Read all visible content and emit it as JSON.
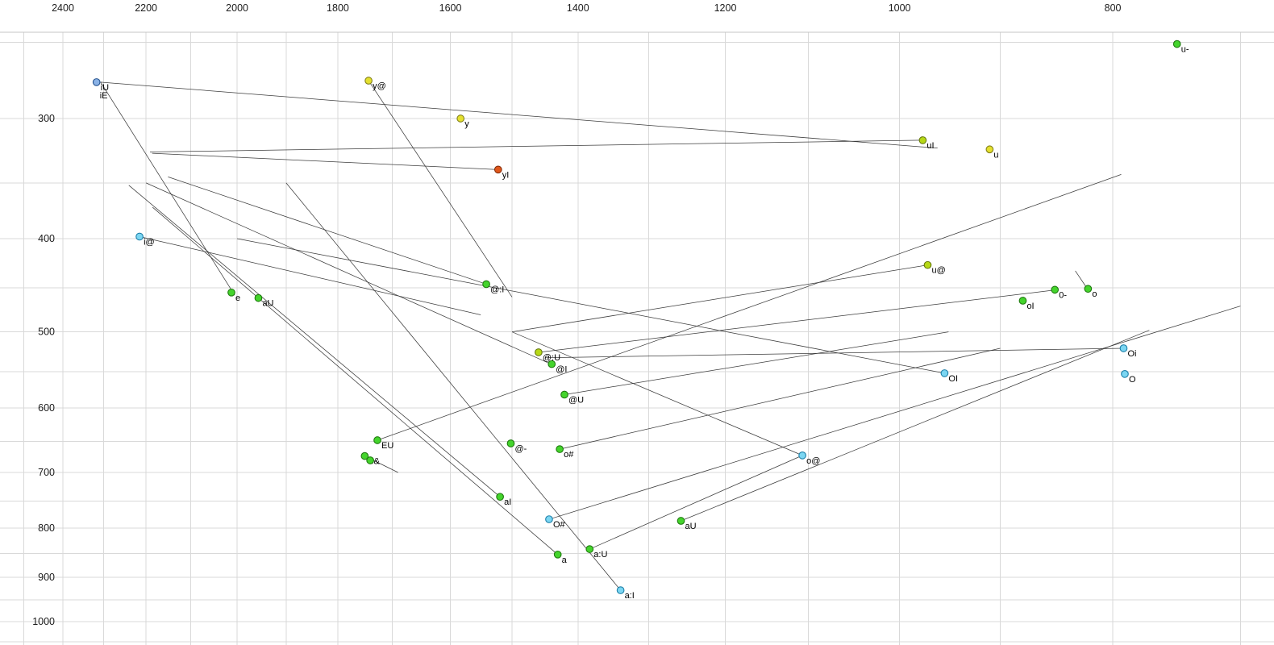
{
  "chart_data": {
    "type": "scatter",
    "title": "",
    "x_axis": {
      "unit": "Hz",
      "scale": "log",
      "reversed": true,
      "tick_labels": [
        "2400",
        "2200",
        "2000",
        "1800",
        "1600",
        "1400",
        "1200",
        "1000",
        "800"
      ],
      "tick_values": [
        2400,
        2200,
        2000,
        1800,
        1600,
        1400,
        1200,
        1000,
        800
      ],
      "grid_min": 700,
      "grid_max": 2500,
      "grid_step": 100
    },
    "y_axis": {
      "unit": "Hz",
      "scale": "log",
      "direction": "down",
      "tick_labels": [
        "300",
        "400",
        "500",
        "600",
        "700",
        "800",
        "900",
        "1000"
      ],
      "tick_values": [
        300,
        400,
        500,
        600,
        700,
        800,
        900,
        1000
      ],
      "grid_min": 250,
      "grid_max": 1050,
      "grid_step": 50
    },
    "grid_color": "#d9d9d9",
    "line_color": "#3c3c3c",
    "palette": {
      "green": {
        "fill": "#44d42c",
        "stroke": "#1f7a0f"
      },
      "yellow": {
        "fill": "#e4e02e",
        "stroke": "#83801a"
      },
      "yellowgreen": {
        "fill": "#b6d816",
        "stroke": "#66790d"
      },
      "cyan": {
        "fill": "#7bd6f2",
        "stroke": "#1d7fa8"
      },
      "blue": {
        "fill": "#8ab2e6",
        "stroke": "#23508c"
      },
      "red": {
        "fill": "#e0571c",
        "stroke": "#832c08"
      }
    },
    "points": [
      {
        "label": "u-",
        "f2": 748,
        "f1": 251,
        "color": "green"
      },
      {
        "label": "iU",
        "f2": 2317,
        "f1": 275,
        "color": "blue"
      },
      {
        "label": "y@",
        "f2": 1743,
        "f1": 274,
        "color": "yellow"
      },
      {
        "label": "y",
        "f2": 1583,
        "f1": 300,
        "color": "yellow"
      },
      {
        "label": "uI",
        "f2": 976,
        "f1": 316,
        "color": "yellowgreen"
      },
      {
        "label": "u",
        "f2": 910,
        "f1": 323,
        "color": "yellow"
      },
      {
        "label": "yI",
        "f2": 1522,
        "f1": 339,
        "color": "red"
      },
      {
        "label": "i@",
        "f2": 2215,
        "f1": 398,
        "color": "cyan"
      },
      {
        "label": "u@",
        "f2": 971,
        "f1": 426,
        "color": "yellowgreen"
      },
      {
        "label": "0-",
        "f2": 850,
        "f1": 452,
        "color": "green"
      },
      {
        "label": "o",
        "f2": 821,
        "f1": 451,
        "color": "green"
      },
      {
        "label": "oI",
        "f2": 879,
        "f1": 464,
        "color": "green"
      },
      {
        "label": "e",
        "f2": 2012,
        "f1": 455,
        "color": "green"
      },
      {
        "label": "aU",
        "f2": 1956,
        "f1": 461,
        "color": "green"
      },
      {
        "label": "@:I",
        "f2": 1541,
        "f1": 446,
        "color": "green"
      },
      {
        "label": "@:U",
        "f2": 1459,
        "f1": 525,
        "color": "yellowgreen"
      },
      {
        "label": "@I",
        "f2": 1439,
        "f1": 540,
        "color": "green"
      },
      {
        "label": "@U",
        "f2": 1420,
        "f1": 581,
        "color": "green"
      },
      {
        "label": "OI",
        "f2": 954,
        "f1": 552,
        "color": "cyan"
      },
      {
        "label": "Oi",
        "f2": 791,
        "f1": 520,
        "color": "cyan"
      },
      {
        "label": "O",
        "f2": 790,
        "f1": 553,
        "color": "cyan"
      },
      {
        "label": "EU",
        "f2": 1727,
        "f1": 648,
        "color": "green"
      },
      {
        "label": "e&",
        "f2": 1750,
        "f1": 673,
        "color": "green"
      },
      {
        "label": "",
        "f2": 1740,
        "f1": 680,
        "color": "green"
      },
      {
        "label": "@-",
        "f2": 1502,
        "f1": 653,
        "color": "green"
      },
      {
        "label": "o#",
        "f2": 1427,
        "f1": 662,
        "color": "green"
      },
      {
        "label": "o@",
        "f2": 1107,
        "f1": 672,
        "color": "cyan"
      },
      {
        "label": "aI",
        "f2": 1519,
        "f1": 742,
        "color": "green"
      },
      {
        "label": "O#",
        "f2": 1443,
        "f1": 783,
        "color": "cyan"
      },
      {
        "label": "aU",
        "f2": 1257,
        "f1": 786,
        "color": "green"
      },
      {
        "label": "a",
        "f2": 1430,
        "f1": 852,
        "color": "green"
      },
      {
        "label": "a:U",
        "f2": 1383,
        "f1": 841,
        "color": "green"
      },
      {
        "label": "a:I",
        "f2": 1339,
        "f1": 928,
        "color": "cyan"
      }
    ],
    "extra_labels": [
      {
        "text": "iE",
        "f2": 2317,
        "f1": 275
      }
    ],
    "segments": [
      [
        2307,
        275,
        961,
        322
      ],
      [
        2307,
        275,
        2005,
        458
      ],
      [
        2215,
        398,
        1550,
        480
      ],
      [
        1743,
        274,
        1500,
        460
      ],
      [
        1522,
        339,
        2186,
        326
      ],
      [
        976,
        316,
        2191,
        325
      ],
      [
        971,
        426,
        1500,
        500
      ],
      [
        1541,
        446,
        2150,
        345
      ],
      [
        1459,
        525,
        848,
        452
      ],
      [
        1443,
        539,
        2200,
        350
      ],
      [
        1420,
        581,
        950,
        500
      ],
      [
        954,
        552,
        2000,
        400
      ],
      [
        791,
        520,
        1449,
        532
      ],
      [
        1727,
        648,
        793,
        343
      ],
      [
        1750,
        673,
        1690,
        700
      ],
      [
        1427,
        662,
        900,
        520
      ],
      [
        1107,
        672,
        1500,
        500
      ],
      [
        1519,
        742,
        2240,
        352
      ],
      [
        1339,
        928,
        1900,
        350
      ],
      [
        1257,
        786,
        770,
        498
      ],
      [
        1383,
        841,
        1107,
        672
      ],
      [
        1430,
        852,
        2185,
        371
      ],
      [
        832,
        432,
        821,
        452
      ],
      [
        1443,
        783,
        700,
        470
      ]
    ]
  }
}
